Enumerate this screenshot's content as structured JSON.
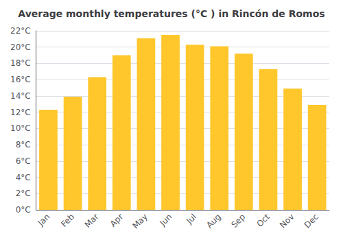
{
  "chart_data": {
    "type": "bar",
    "title": "Average monthly temperatures (°C ) in Rincón de Romos",
    "categories": [
      "Jan",
      "Feb",
      "Mar",
      "Apr",
      "May",
      "Jun",
      "Jul",
      "Aug",
      "Sep",
      "Oct",
      "Nov",
      "Dec"
    ],
    "values": [
      12.3,
      13.9,
      16.3,
      19.0,
      21.1,
      21.5,
      20.3,
      20.1,
      19.2,
      17.3,
      14.9,
      12.9
    ],
    "color": "#FFC72C",
    "ylim": [
      0,
      22
    ],
    "yticks": [
      {
        "value": 0,
        "label": "0°C"
      },
      {
        "value": 2,
        "label": "2°C"
      },
      {
        "value": 4,
        "label": "4°C"
      },
      {
        "value": 6,
        "label": "6°C"
      },
      {
        "value": 8,
        "label": "8°C"
      },
      {
        "value": 10,
        "label": "10°C"
      },
      {
        "value": 12,
        "label": "12°C"
      },
      {
        "value": 14,
        "label": "14°C"
      },
      {
        "value": 16,
        "label": "16°C"
      },
      {
        "value": 18,
        "label": "18°C"
      },
      {
        "value": 20,
        "label": "20°C"
      },
      {
        "value": 22,
        "label": "22°C"
      }
    ],
    "grid": true
  }
}
